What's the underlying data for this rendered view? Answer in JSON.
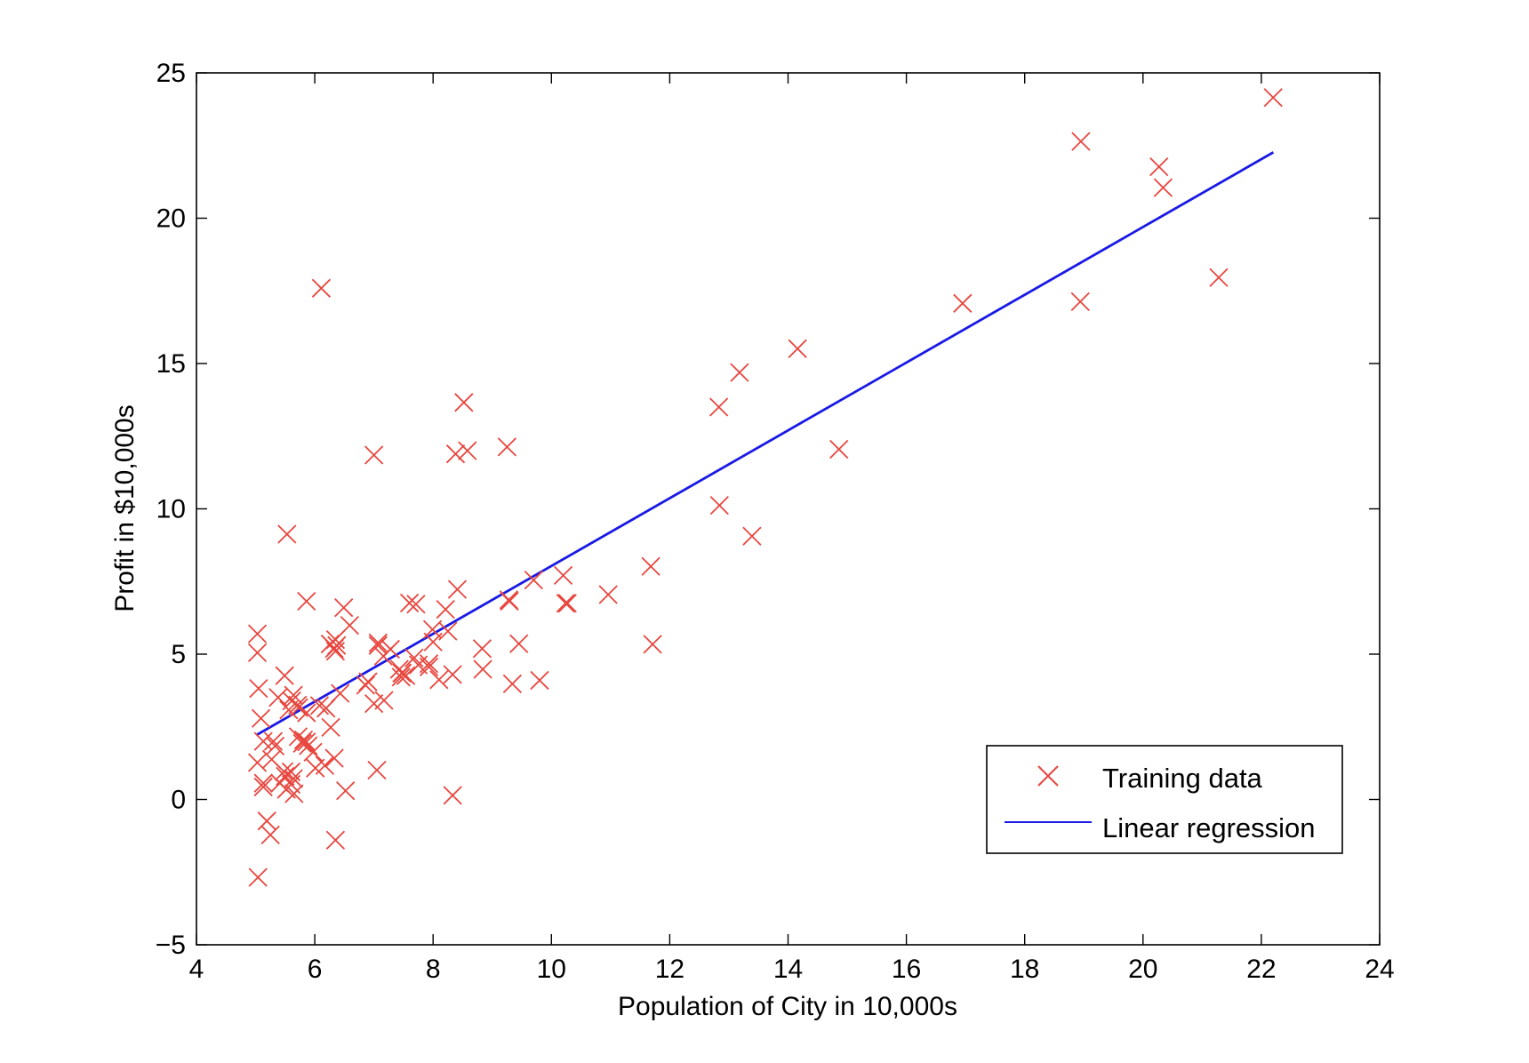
{
  "chart_data": {
    "type": "scatter",
    "xlabel": "Population of City in 10,000s",
    "ylabel": "Profit in $10,000s",
    "xlim": [
      4,
      24
    ],
    "ylim": [
      -5,
      25
    ],
    "x_ticks": [
      "4",
      "6",
      "8",
      "10",
      "12",
      "14",
      "16",
      "18",
      "20",
      "22",
      "24"
    ],
    "y_ticks": [
      "−5",
      "0",
      "5",
      "10",
      "15",
      "20",
      "25"
    ],
    "grid": false,
    "legend_position": "bottom-right",
    "series": [
      {
        "name": "Training data",
        "kind": "scatter",
        "marker": "x",
        "color": "#e8473f",
        "points": [
          [
            6.11,
            17.59
          ],
          [
            5.53,
            9.13
          ],
          [
            8.52,
            13.66
          ],
          [
            7.0,
            11.85
          ],
          [
            5.86,
            6.82
          ],
          [
            8.38,
            11.89
          ],
          [
            7.48,
            4.35
          ],
          [
            8.58,
            12.0
          ],
          [
            6.49,
            6.6
          ],
          [
            5.05,
            3.82
          ],
          [
            5.71,
            3.25
          ],
          [
            14.16,
            15.51
          ],
          [
            5.73,
            3.16
          ],
          [
            8.41,
            7.23
          ],
          [
            5.64,
            0.72
          ],
          [
            5.38,
            3.51
          ],
          [
            6.37,
            5.3
          ],
          [
            5.13,
            0.56
          ],
          [
            6.43,
            3.65
          ],
          [
            7.07,
            5.39
          ],
          [
            6.19,
            3.14
          ],
          [
            20.27,
            21.77
          ],
          [
            5.49,
            4.26
          ],
          [
            6.33,
            5.19
          ],
          [
            5.56,
            3.08
          ],
          [
            18.95,
            22.64
          ],
          [
            12.83,
            13.5
          ],
          [
            10.96,
            7.05
          ],
          [
            13.18,
            14.69
          ],
          [
            22.2,
            24.15
          ],
          [
            5.25,
            -1.22
          ],
          [
            6.59,
            5.99
          ],
          [
            9.25,
            12.13
          ],
          [
            5.89,
            1.85
          ],
          [
            8.21,
            6.54
          ],
          [
            7.93,
            4.56
          ],
          [
            8.1,
            4.12
          ],
          [
            5.61,
            3.39
          ],
          [
            12.84,
            10.12
          ],
          [
            6.35,
            5.5
          ],
          [
            5.41,
            0.56
          ],
          [
            6.86,
            3.93
          ],
          [
            5.64,
            3.59
          ],
          [
            6.33,
            1.42
          ],
          [
            6.35,
            5.1
          ],
          [
            6.27,
            2.48
          ],
          [
            5.65,
            0.2
          ],
          [
            7.46,
            4.21
          ],
          [
            5.03,
            5.05
          ],
          [
            8.83,
            5.19
          ],
          [
            5.19,
            -0.74
          ],
          [
            6.35,
            -1.4
          ],
          [
            13.39,
            9.06
          ],
          [
            9.29,
            6.82
          ],
          [
            7.43,
            4.48
          ],
          [
            5.13,
            0.43
          ],
          [
            5.72,
            2.16
          ],
          [
            5.79,
            1.93
          ],
          [
            5.04,
            -2.68
          ],
          [
            7.17,
            3.41
          ],
          [
            5.03,
            5.7
          ],
          [
            8.33,
            4.3
          ],
          [
            7.93,
            4.67
          ],
          [
            5.33,
            1.84
          ],
          [
            5.86,
            1.98
          ],
          [
            7.54,
            4.26
          ],
          [
            5.48,
            0.96
          ],
          [
            5.86,
            2.98
          ],
          [
            9.7,
            7.55
          ],
          [
            7.68,
            4.87
          ],
          [
            6.01,
            1.08
          ],
          [
            7.75,
            4.63
          ],
          [
            7.0,
            3.3
          ],
          [
            8.84,
            4.48
          ],
          [
            8.0,
            5.42
          ],
          [
            8.25,
            5.79
          ],
          [
            9.34,
            3.98
          ],
          [
            10.27,
            6.75
          ],
          [
            16.95,
            17.07
          ],
          [
            7.6,
            6.76
          ],
          [
            5.6,
            0.95
          ],
          [
            9.28,
            6.87
          ],
          [
            10.2,
            7.71
          ],
          [
            5.27,
            1.38
          ],
          [
            9.45,
            5.36
          ],
          [
            6.9,
            4.05
          ],
          [
            9.8,
            4.1
          ],
          [
            7.07,
            5.3
          ],
          [
            10.24,
            6.75
          ],
          [
            6.26,
            5.35
          ],
          [
            8.33,
            0.14
          ],
          [
            11.68,
            8.02
          ],
          [
            11.71,
            5.34
          ],
          [
            14.86,
            12.05
          ],
          [
            5.09,
            2.79
          ],
          [
            18.94,
            17.13
          ],
          [
            20.34,
            21.05
          ],
          [
            21.28,
            17.96
          ],
          [
            7.28,
            5.17
          ],
          [
            5.3,
            2.0
          ],
          [
            5.03,
            1.27
          ],
          [
            5.97,
            1.63
          ],
          [
            7.05,
            1.01
          ],
          [
            5.52,
            0.35
          ],
          [
            7.16,
            4.93
          ],
          [
            7.71,
            6.72
          ],
          [
            6.17,
            1.17
          ],
          [
            7.99,
            5.85
          ],
          [
            6.52,
            0.3
          ],
          [
            5.6,
            0.52
          ],
          [
            5.13,
            2.0
          ],
          [
            5.5,
            0.8
          ],
          [
            6.08,
            3.23
          ],
          [
            7.47,
            4.35
          ],
          [
            5.81,
            2.05
          ]
        ]
      },
      {
        "name": "Linear regression",
        "kind": "line",
        "color": "#1a1ae6",
        "intercept": -3.6303,
        "slope": 1.1664,
        "x_range": [
          5.0269,
          22.203
        ]
      }
    ]
  }
}
